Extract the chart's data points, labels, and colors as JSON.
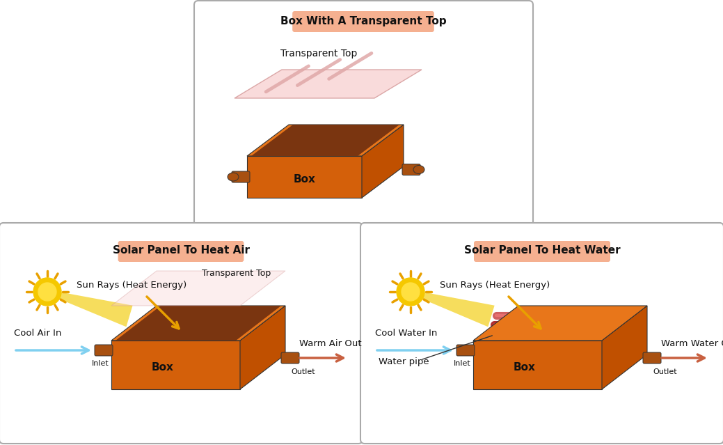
{
  "bg_color": "#ffffff",
  "panel1_title": "Box With A Transparent Top",
  "panel2_title": "Solar Panel To Heat Air",
  "panel3_title": "Solar Panel To Heat Water",
  "title_bg": "#f5b090",
  "box_orange_top": "#e8761a",
  "box_orange_front": "#d4600a",
  "box_orange_side": "#c05000",
  "box_inner": "#7a3510",
  "pipe_color": "#a85010",
  "transparent_fill": "#f8d0d0",
  "transparent_stripe": "#e8b0b0",
  "sun_yellow": "#f5c800",
  "sun_ray_color": "#e8a000",
  "cool_color": "#80d0f0",
  "warm_color": "#c86040",
  "water_dark": "#800000",
  "water_mid": "#b03030",
  "text_color": "#111111",
  "border_color": "#aaaaaa"
}
